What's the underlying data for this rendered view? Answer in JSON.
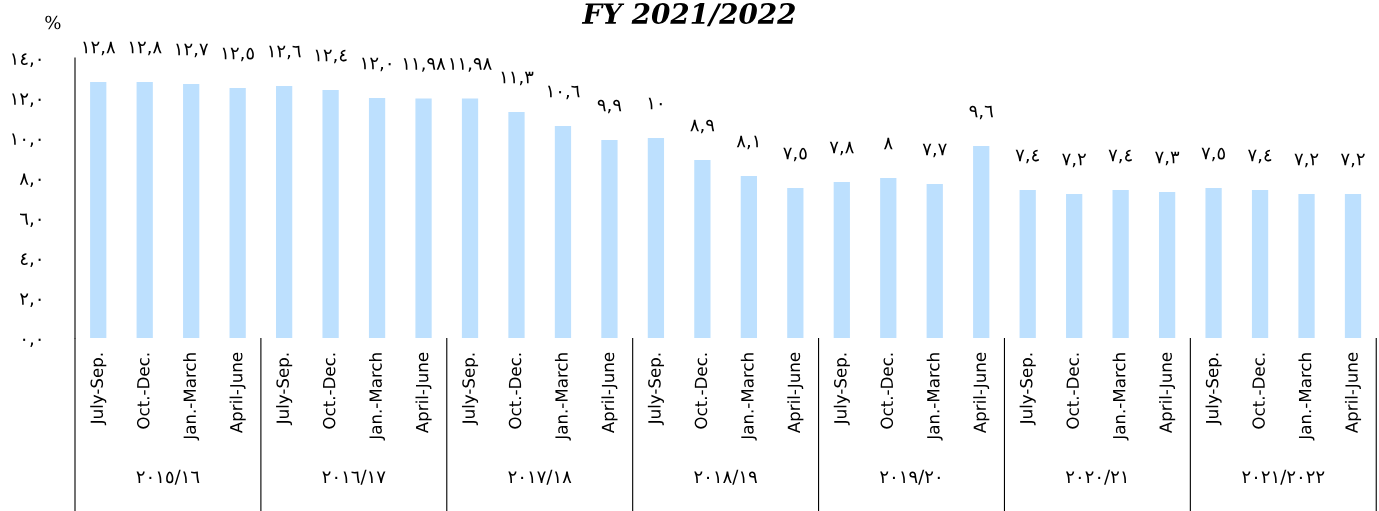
{
  "chart_data": {
    "type": "bar",
    "title": "FY 2021/2022",
    "ylabel": "%",
    "categories": [
      "July-Sep.",
      "Oct.-Dec.",
      "Jan.-March",
      "April-June",
      "July-Sep.",
      "Oct.-Dec.",
      "Jan.-March",
      "April-June",
      "July-Sep.",
      "Oct.-Dec.",
      "Jan.-March",
      "April-June",
      "July-Sep.",
      "Oct.-Dec.",
      "Jan.-March",
      "April-June",
      "July-Sep.",
      "Oct.-Dec.",
      "Jan.-March",
      "April-June",
      "July-Sep.",
      "Oct.-Dec.",
      "Jan.-March",
      "April-June",
      "July-Sep.",
      "Oct.-Dec.",
      "Jan.-March",
      "April-June"
    ],
    "values": [
      12.8,
      12.8,
      12.7,
      12.5,
      12.6,
      12.4,
      12.0,
      11.98,
      11.98,
      11.3,
      10.6,
      9.9,
      10,
      8.9,
      8.1,
      7.5,
      7.8,
      8,
      7.7,
      9.6,
      7.4,
      7.2,
      7.4,
      7.3,
      7.5,
      7.4,
      7.2,
      7.2
    ],
    "value_labels": [
      "١٢,٨",
      "١٢,٨",
      "١٢,٧",
      "١٢,٥",
      "١٢,٦",
      "١٢,٤",
      "١٢,٠",
      "١١,٩٨",
      "١١,٩٨",
      "١١,٣",
      "١٠,٦",
      "٩,٩",
      "١٠",
      "٨,٩",
      "٨,١",
      "٧,٥",
      "٧,٨",
      "٨",
      "٧,٧",
      "٩,٦",
      "٧,٤",
      "٧,٢",
      "٧,٤",
      "٧,٣",
      "٧,٥",
      "٧,٤",
      "٧,٢",
      "٧,٢"
    ],
    "color": "#bde0fe",
    "ylim": [
      0,
      14
    ],
    "yticks": [
      {
        "value": 0,
        "label": "٠,٠"
      },
      {
        "value": 2,
        "label": "٢,٠"
      },
      {
        "value": 4,
        "label": "٤,٠"
      },
      {
        "value": 6,
        "label": "٦,٠"
      },
      {
        "value": 8,
        "label": "٨,٠"
      },
      {
        "value": 10,
        "label": "١٠,٠"
      },
      {
        "value": 12,
        "label": "١٢,٠"
      },
      {
        "value": 14,
        "label": "١٤,٠"
      }
    ],
    "annotations": [
      "٢٠١٥/١٦",
      "٢٠١٦/١٧",
      "٢٠١٧/١٨",
      "٢٠١٨/١٩",
      "٢٠١٩/٢٠",
      "٢٠٢٠/٢١",
      "٢٠٢١/٢٠٢٢"
    ],
    "grid": false,
    "legend": false
  }
}
